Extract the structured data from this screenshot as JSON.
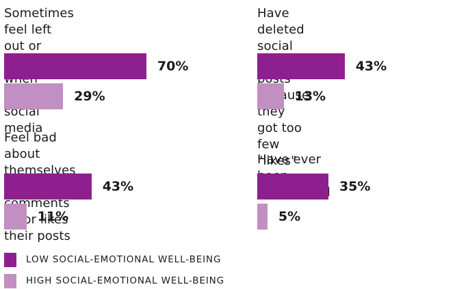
{
  "colors": {
    "low": "#8e1f8e",
    "high": "#c28fc2",
    "text": "#1a1a1a"
  },
  "chart_data": [
    {
      "type": "bar",
      "orientation": "horizontal",
      "title": "Sometimes feel left out or excluded\nwhen using social media",
      "series": [
        {
          "name": "LOW SOCIAL-EMOTIONAL WELL-BEING",
          "value": 70,
          "label": "70%"
        },
        {
          "name": "HIGH SOCIAL-EMOTIONAL WELL-BEING",
          "value": 29,
          "label": "29%"
        }
      ]
    },
    {
      "type": "bar",
      "orientation": "horizontal",
      "title": "Have deleted social media posts\nbecause they got too few \"likes\"",
      "series": [
        {
          "name": "LOW SOCIAL-EMOTIONAL WELL-BEING",
          "value": 43,
          "label": "43%"
        },
        {
          "name": "HIGH SOCIAL-EMOTIONAL WELL-BEING",
          "value": 13,
          "label": "13%"
        }
      ]
    },
    {
      "type": "bar",
      "orientation": "horizontal",
      "title": "Feel bad about themselves if no one\ncomments on or likes their posts",
      "series": [
        {
          "name": "LOW SOCIAL-EMOTIONAL WELL-BEING",
          "value": 43,
          "label": "43%"
        },
        {
          "name": "HIGH SOCIAL-EMOTIONAL WELL-BEING",
          "value": 11,
          "label": "11%"
        }
      ]
    },
    {
      "type": "bar",
      "orientation": "horizontal",
      "title": "Have ever been cyberbulled",
      "series": [
        {
          "name": "LOW SOCIAL-EMOTIONAL WELL-BEING",
          "value": 35,
          "label": "35%"
        },
        {
          "name": "HIGH SOCIAL-EMOTIONAL WELL-BEING",
          "value": 5,
          "label": "5%"
        }
      ]
    }
  ],
  "legend": {
    "low_label": "LOW SOCIAL-EMOTIONAL WELL-BEING",
    "high_label": "HIGH SOCIAL-EMOTIONAL WELL-BEING"
  }
}
